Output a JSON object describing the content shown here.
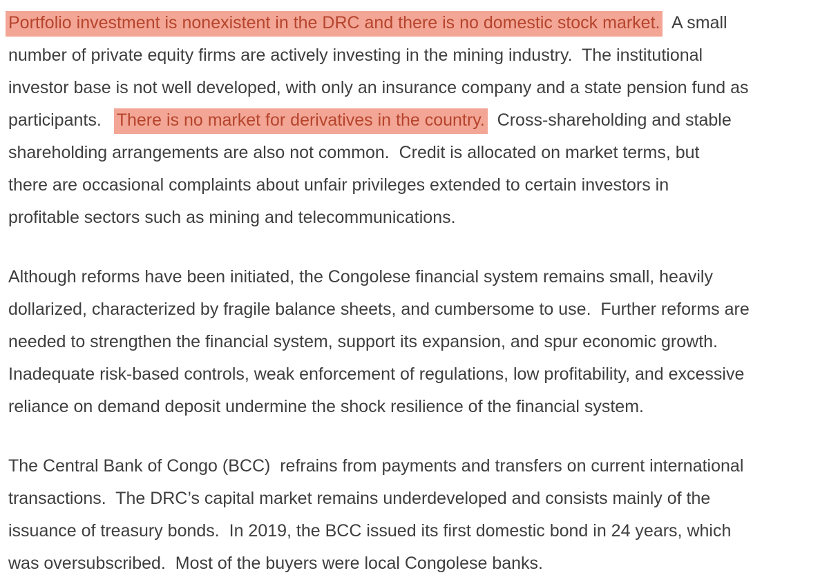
{
  "paragraph1": {
    "highlight1": "Portfolio investment is nonexistent in the DRC and there is no domestic stock market.",
    "line1_rest": "  A small",
    "line2": "number of private equity firms are actively investing in the mining industry.  The institutional",
    "line3": "investor base is not well developed, with only an insurance company and a state pension fund as",
    "line4_start": "participants.  ",
    "highlight2": "There is no market for derivatives in the country.",
    "line4_rest": "  Cross-shareholding and stable",
    "line5": "shareholding arrangements are also not common.  Credit is allocated on market terms, but",
    "line6": "there are occasional complaints about unfair privileges extended to certain investors in",
    "line7": "profitable sectors such as mining and telecommunications."
  },
  "paragraph2": {
    "line1": "Although reforms have been initiated, the Congolese financial system remains small, heavily",
    "line2": "dollarized, characterized by fragile balance sheets, and cumbersome to use.  Further reforms are",
    "line3": "needed to strengthen the financial system, support its expansion, and spur economic growth.",
    "line4": "Inadequate risk-based controls, weak enforcement of regulations, low profitability, and excessive",
    "line5": "reliance on demand deposit undermine the shock resilience of the financial system."
  },
  "paragraph3": {
    "line1": "The Central Bank of Congo (BCC)  refrains from payments and transfers on current international",
    "line2": "transactions.  The DRC’s capital market remains underdeveloped and consists mainly of the",
    "line3": "issuance of treasury bonds.  In 2019, the BCC issued its first domestic bond in 24 years, which",
    "line4": "was oversubscribed.  Most of the buyers were local Congolese banks."
  },
  "colors": {
    "text": "#3e3e3e",
    "highlight_background": "#f3a696",
    "highlight_text": "#b5442d"
  }
}
